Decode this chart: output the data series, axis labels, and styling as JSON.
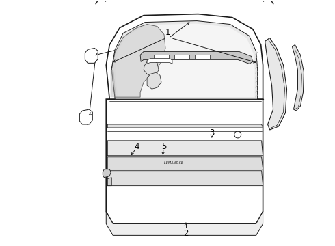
{
  "background_color": "#ffffff",
  "line_color": "#1a1a1a",
  "label_color": "#000000",
  "label_fontsize": 8.5,
  "hatch_color": "#888888"
}
